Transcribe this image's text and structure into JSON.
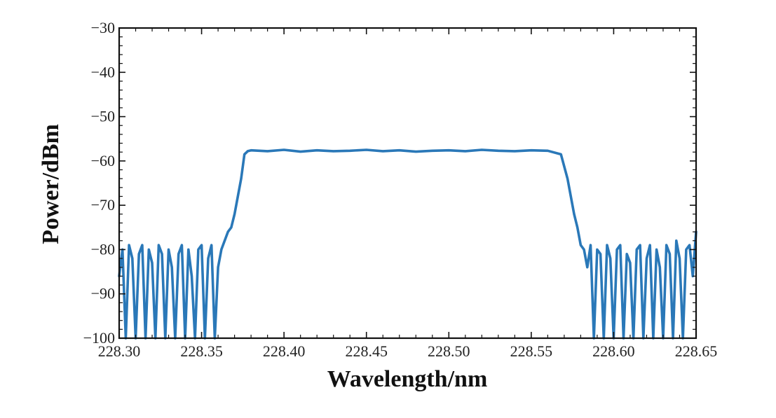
{
  "chart_data": {
    "type": "line",
    "title": "",
    "xlabel": "Wavelength/nm",
    "ylabel": "Power/dBm",
    "xlim": [
      228.3,
      228.65
    ],
    "ylim": [
      -100,
      -30
    ],
    "x_ticks": [
      228.3,
      228.35,
      228.4,
      228.45,
      228.5,
      228.55,
      228.6,
      228.65
    ],
    "x_tick_labels": [
      "228.30",
      "228.35",
      "228.40",
      "228.45",
      "228.50",
      "228.55",
      "228.60",
      "228.65"
    ],
    "y_ticks": [
      -30,
      -40,
      -50,
      -60,
      -70,
      -80,
      -90,
      -100
    ],
    "y_tick_labels": [
      "−30",
      "−40",
      "−50",
      "−60",
      "−70",
      "−80",
      "−90",
      "−100"
    ],
    "grid": false,
    "legend": "none",
    "series": [
      {
        "color": "#2a78b8",
        "x": [
          228.3,
          228.302,
          228.304,
          228.306,
          228.308,
          228.31,
          228.312,
          228.314,
          228.316,
          228.318,
          228.32,
          228.322,
          228.324,
          228.326,
          228.328,
          228.33,
          228.332,
          228.334,
          228.336,
          228.338,
          228.34,
          228.342,
          228.344,
          228.346,
          228.348,
          228.35,
          228.352,
          228.354,
          228.356,
          228.358,
          228.36,
          228.362,
          228.364,
          228.366,
          228.368,
          228.37,
          228.372,
          228.374,
          228.376,
          228.378,
          228.38,
          228.39,
          228.4,
          228.41,
          228.42,
          228.43,
          228.44,
          228.45,
          228.46,
          228.47,
          228.48,
          228.49,
          228.5,
          228.51,
          228.52,
          228.53,
          228.54,
          228.55,
          228.56,
          228.568,
          228.572,
          228.574,
          228.576,
          228.578,
          228.58,
          228.582,
          228.584,
          228.586,
          228.588,
          228.59,
          228.592,
          228.594,
          228.596,
          228.598,
          228.6,
          228.602,
          228.604,
          228.606,
          228.608,
          228.61,
          228.612,
          228.614,
          228.616,
          228.618,
          228.62,
          228.622,
          228.624,
          228.626,
          228.628,
          228.63,
          228.632,
          228.634,
          228.636,
          228.638,
          228.64,
          228.642,
          228.644,
          228.646,
          228.648,
          228.65
        ],
        "y": [
          -86,
          -80,
          -100,
          -79,
          -82,
          -100,
          -81,
          -79,
          -100,
          -80,
          -83,
          -100,
          -79,
          -81,
          -100,
          -80,
          -84,
          -100,
          -81,
          -79,
          -100,
          -80,
          -86,
          -100,
          -80,
          -79,
          -100,
          -82,
          -79,
          -100,
          -84,
          -80,
          -78,
          -76,
          -75,
          -72,
          -68,
          -64,
          -58.5,
          -57.8,
          -57.6,
          -57.8,
          -57.5,
          -57.9,
          -57.6,
          -57.8,
          -57.7,
          -57.5,
          -57.8,
          -57.6,
          -57.9,
          -57.7,
          -57.6,
          -57.8,
          -57.5,
          -57.7,
          -57.8,
          -57.6,
          -57.7,
          -58.5,
          -64,
          -68,
          -72,
          -75,
          -79,
          -80,
          -84,
          -79,
          -100,
          -80,
          -81,
          -100,
          -79,
          -82,
          -100,
          -80,
          -79,
          -100,
          -81,
          -83,
          -100,
          -80,
          -79,
          -100,
          -82,
          -79,
          -100,
          -80,
          -84,
          -100,
          -79,
          -81,
          -100,
          -78,
          -82,
          -100,
          -80,
          -79,
          -86,
          -76
        ]
      }
    ]
  }
}
